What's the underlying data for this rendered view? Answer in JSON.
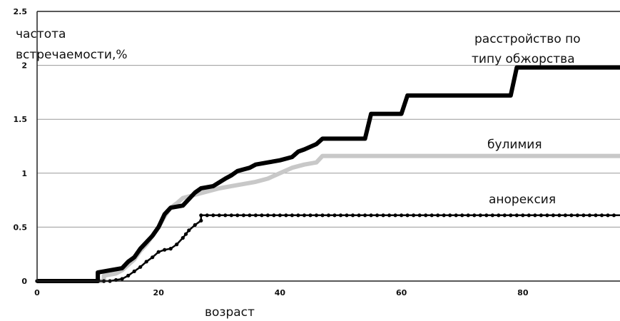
{
  "chart_data": {
    "type": "line",
    "title": "",
    "xlabel": "возраст",
    "ylabel_lines": [
      "частота",
      "встречаемости,%"
    ],
    "xlim": [
      0,
      96
    ],
    "ylim": [
      0,
      2.5
    ],
    "x_ticks": [
      0,
      20,
      40,
      60,
      80
    ],
    "x_tick_labels": [
      "0",
      "20",
      "40",
      "60",
      "80"
    ],
    "y_ticks": [
      0,
      0.5,
      1,
      1.5,
      2,
      2.5
    ],
    "y_tick_labels": [
      "0",
      "0.5",
      "1",
      "1.5",
      "2",
      "2.5"
    ],
    "gridlines_y": [
      0.5,
      1,
      1.5,
      2
    ],
    "grid": true,
    "legend": "inline labels",
    "series": [
      {
        "name": "булимия",
        "label_lines": [
          "булимия"
        ],
        "color": "#c8c8c8",
        "style": "thick-gray",
        "points": [
          [
            0,
            0
          ],
          [
            11,
            0
          ],
          [
            11,
            0.05
          ],
          [
            13,
            0.07
          ],
          [
            14,
            0.1
          ],
          [
            15,
            0.15
          ],
          [
            16,
            0.2
          ],
          [
            17,
            0.28
          ],
          [
            18,
            0.34
          ],
          [
            19,
            0.42
          ],
          [
            20,
            0.5
          ],
          [
            21,
            0.6
          ],
          [
            22,
            0.68
          ],
          [
            23,
            0.72
          ],
          [
            24,
            0.77
          ],
          [
            26,
            0.8
          ],
          [
            28,
            0.83
          ],
          [
            30,
            0.86
          ],
          [
            32,
            0.88
          ],
          [
            34,
            0.9
          ],
          [
            36,
            0.92
          ],
          [
            38,
            0.95
          ],
          [
            40,
            1.0
          ],
          [
            42,
            1.05
          ],
          [
            44,
            1.08
          ],
          [
            46,
            1.1
          ],
          [
            47,
            1.16
          ],
          [
            96,
            1.16
          ]
        ]
      },
      {
        "name": "расстройство по типу обжорства",
        "label_lines": [
          "расстройство по",
          "типу обжорства"
        ],
        "color": "#000000",
        "style": "thick-black",
        "points": [
          [
            0,
            0
          ],
          [
            10,
            0
          ],
          [
            10,
            0.08
          ],
          [
            12,
            0.1
          ],
          [
            14,
            0.12
          ],
          [
            15,
            0.18
          ],
          [
            16,
            0.22
          ],
          [
            17,
            0.3
          ],
          [
            18,
            0.36
          ],
          [
            19,
            0.42
          ],
          [
            20,
            0.5
          ],
          [
            21,
            0.62
          ],
          [
            22,
            0.68
          ],
          [
            24,
            0.7
          ],
          [
            25,
            0.76
          ],
          [
            26,
            0.82
          ],
          [
            27,
            0.86
          ],
          [
            29,
            0.88
          ],
          [
            31,
            0.95
          ],
          [
            32,
            0.98
          ],
          [
            33,
            1.02
          ],
          [
            35,
            1.05
          ],
          [
            36,
            1.08
          ],
          [
            38,
            1.1
          ],
          [
            40,
            1.12
          ],
          [
            42,
            1.15
          ],
          [
            43,
            1.2
          ],
          [
            44,
            1.22
          ],
          [
            46,
            1.27
          ],
          [
            47,
            1.32
          ],
          [
            54,
            1.32
          ],
          [
            55,
            1.55
          ],
          [
            60,
            1.55
          ],
          [
            61,
            1.72
          ],
          [
            78,
            1.72
          ],
          [
            79,
            1.98
          ],
          [
            96,
            1.98
          ]
        ]
      },
      {
        "name": "анорексия",
        "label_lines": [
          "анорексия"
        ],
        "color": "#000000",
        "style": "dotted-black",
        "points": [
          [
            0,
            0
          ],
          [
            12,
            0
          ],
          [
            13,
            0.01
          ],
          [
            14,
            0.02
          ],
          [
            15,
            0.05
          ],
          [
            16,
            0.09
          ],
          [
            17,
            0.13
          ],
          [
            18,
            0.18
          ],
          [
            19,
            0.22
          ],
          [
            20,
            0.27
          ],
          [
            21,
            0.29
          ],
          [
            22,
            0.3
          ],
          [
            23,
            0.34
          ],
          [
            24,
            0.4
          ],
          [
            25,
            0.47
          ],
          [
            26,
            0.52
          ],
          [
            27,
            0.56
          ],
          [
            27,
            0.61
          ],
          [
            96,
            0.61
          ]
        ]
      }
    ]
  }
}
